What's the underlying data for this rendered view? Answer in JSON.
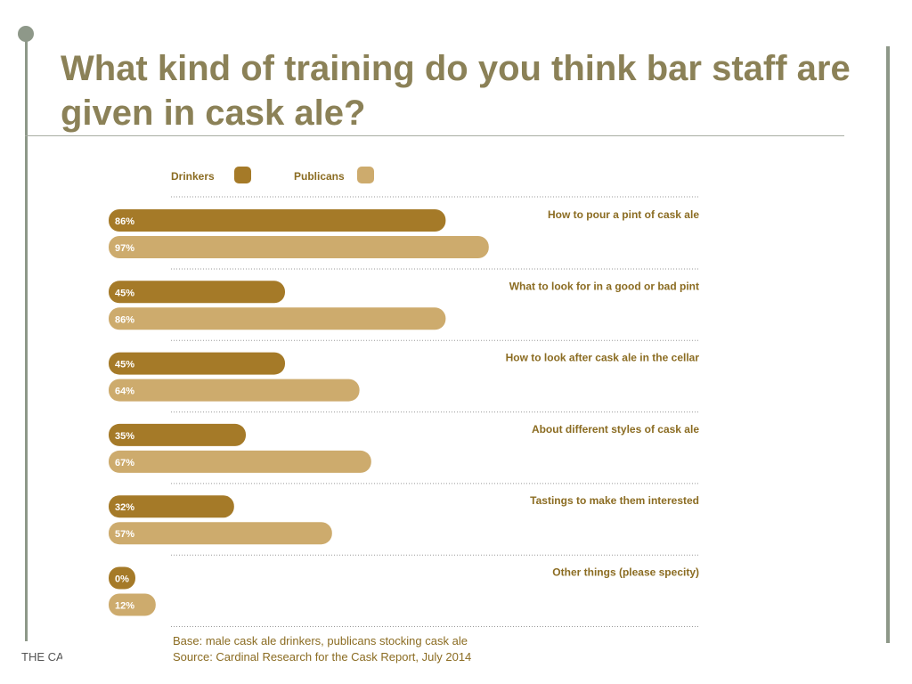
{
  "slide": {
    "title": "What kind of training do you think bar staff are given in cask ale?",
    "footer_text": "THE CASK REPORT"
  },
  "colors": {
    "drinkers": "#a57a28",
    "publicans": "#cdab6d",
    "label_text": "#8b6c22",
    "title": "#8b8157"
  },
  "chart_data": {
    "type": "bar",
    "orientation": "horizontal",
    "categories": [
      "How to pour a pint of cask ale",
      "What to look for in a good or bad pint",
      "How to look after cask ale in the cellar",
      "About different styles of cask ale",
      "Tastings to make them interested",
      "Other things (please specity)"
    ],
    "series": [
      {
        "name": "Drinkers",
        "values": [
          86,
          45,
          45,
          35,
          32,
          0
        ],
        "labels": [
          "86%",
          "45%",
          "45%",
          "35%",
          "32%",
          "0%"
        ]
      },
      {
        "name": "Publicans",
        "values": [
          97,
          86,
          64,
          67,
          57,
          12
        ],
        "labels": [
          "97%",
          "86%",
          "64%",
          "67%",
          "57%",
          "12%"
        ]
      }
    ],
    "unit": "%",
    "xlim": [
      0,
      100
    ],
    "legend_position": "top-left",
    "grid": false,
    "notes": [
      "Base: male cask ale drinkers, publicans stocking cask ale",
      "Source: Cardinal Research for the Cask Report, July 2014"
    ]
  }
}
